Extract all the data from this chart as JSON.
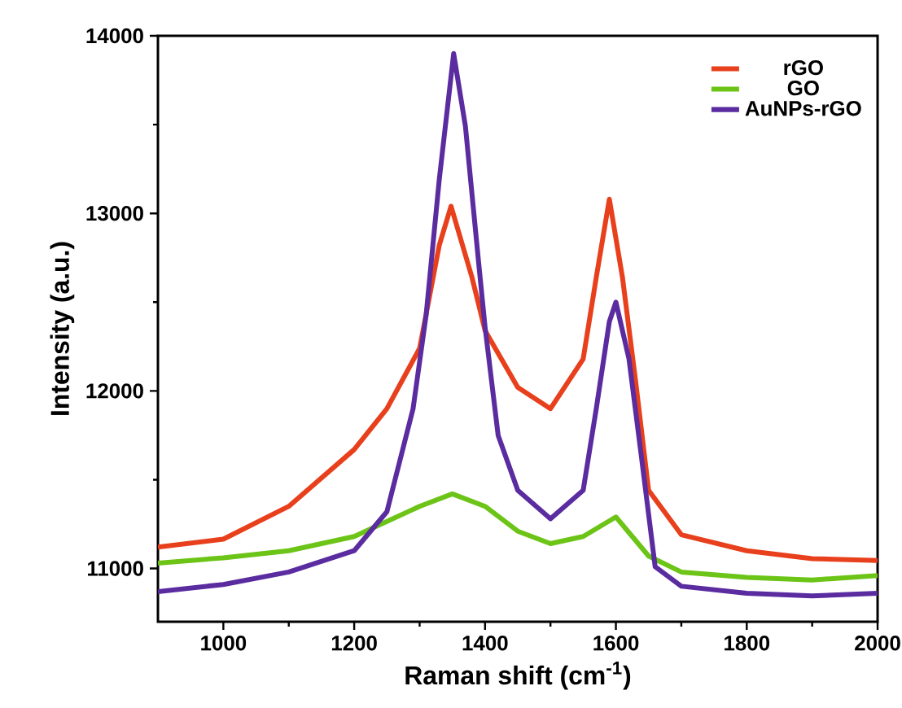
{
  "chart_data": {
    "type": "line",
    "xlabel": "Raman shift (cm$^{-1}$)",
    "ylabel": "Intensity (a.u.)",
    "xlim": [
      900,
      2000
    ],
    "ylim": [
      10700,
      14000
    ],
    "xticks": [
      1000,
      1200,
      1400,
      1600,
      1800,
      2000
    ],
    "yticks": [
      11000,
      12000,
      13000,
      14000
    ],
    "legend": "top right",
    "grid": false,
    "marker": "none",
    "line_style": "solid",
    "series": [
      {
        "name": "rGO",
        "color": "#e8401c",
        "x": [
          900,
          1000,
          1100,
          1200,
          1250,
          1300,
          1330,
          1348,
          1380,
          1400,
          1450,
          1500,
          1550,
          1570,
          1590,
          1610,
          1630,
          1650,
          1700,
          1800,
          1900,
          2000
        ],
        "values": [
          11120,
          11165,
          11350,
          11670,
          11900,
          12240,
          12820,
          13040,
          12640,
          12340,
          12020,
          11900,
          12180,
          12640,
          13080,
          12640,
          12060,
          11440,
          11190,
          11100,
          11055,
          11045
        ]
      },
      {
        "name": "GO",
        "color": "#6cc417",
        "x": [
          900,
          1000,
          1100,
          1200,
          1300,
          1350,
          1400,
          1450,
          1500,
          1550,
          1600,
          1650,
          1700,
          1800,
          1900,
          2000
        ],
        "values": [
          11030,
          11060,
          11100,
          11180,
          11350,
          11420,
          11350,
          11210,
          11140,
          11180,
          11290,
          11070,
          10980,
          10950,
          10935,
          10960
        ]
      },
      {
        "name": "AuNPs-rGO",
        "color": "#5a2ca0",
        "x": [
          900,
          1000,
          1100,
          1200,
          1250,
          1290,
          1310,
          1330,
          1352,
          1370,
          1390,
          1400,
          1420,
          1450,
          1500,
          1550,
          1570,
          1590,
          1600,
          1620,
          1640,
          1660,
          1700,
          1800,
          1900,
          2000
        ],
        "values": [
          10870,
          10910,
          10980,
          11100,
          11320,
          11900,
          12430,
          13190,
          13900,
          13490,
          12730,
          12360,
          11750,
          11440,
          11280,
          11440,
          11900,
          12390,
          12500,
          12180,
          11600,
          11010,
          10900,
          10860,
          10845,
          10860
        ]
      }
    ]
  }
}
